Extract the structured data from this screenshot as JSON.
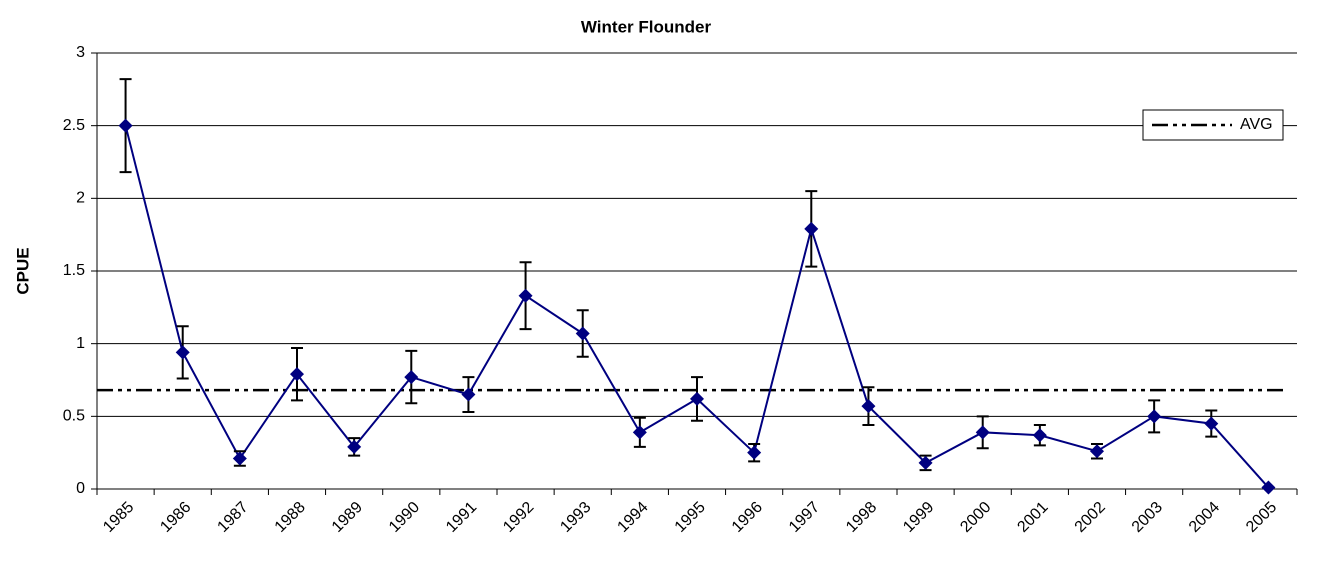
{
  "chart_data": {
    "type": "line",
    "title": "Winter Flounder",
    "y_label": "CPUE",
    "categories": [
      "1985",
      "1986",
      "1987",
      "1988",
      "1989",
      "1990",
      "1991",
      "1992",
      "1993",
      "1994",
      "1995",
      "1996",
      "1997",
      "1998",
      "1999",
      "2000",
      "2001",
      "2002",
      "2003",
      "2004",
      "2005"
    ],
    "values": [
      2.5,
      0.94,
      0.21,
      0.79,
      0.29,
      0.77,
      0.65,
      1.33,
      1.07,
      0.39,
      0.62,
      0.25,
      1.79,
      0.57,
      0.18,
      0.39,
      0.37,
      0.26,
      0.5,
      0.45,
      0.01
    ],
    "errors": [
      0.32,
      0.18,
      0.05,
      0.18,
      0.06,
      0.18,
      0.12,
      0.23,
      0.16,
      0.1,
      0.15,
      0.06,
      0.26,
      0.13,
      0.05,
      0.11,
      0.07,
      0.05,
      0.11,
      0.09,
      0.0
    ],
    "color": "#000080",
    "avg": {
      "name": "AVG",
      "value": 0.68,
      "color": "#000000"
    },
    "ylim": [
      0,
      3
    ],
    "yticks": [
      0,
      0.5,
      1,
      1.5,
      2,
      2.5,
      3
    ],
    "grid": true,
    "legend": "top-right"
  }
}
